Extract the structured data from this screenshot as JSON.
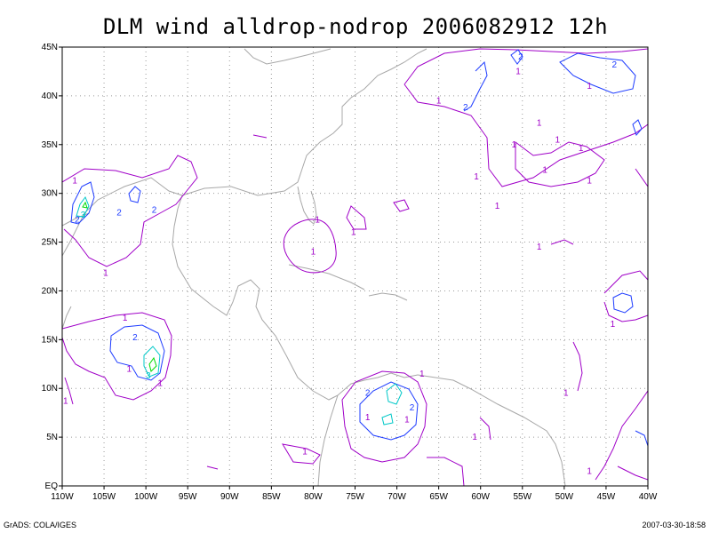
{
  "title": "DLM wind alldrop-nodrop 2006082912 12h",
  "footer": {
    "left": "GrADS: COLA/IGES",
    "right": "2007-03-30-18:58"
  },
  "axes": {
    "lon": {
      "min": -110,
      "max": -40,
      "ticks": [
        -110,
        -105,
        -100,
        -95,
        -90,
        -85,
        -80,
        -75,
        -70,
        -65,
        -60,
        -55,
        -50,
        -45,
        -40
      ],
      "labels": [
        "110W",
        "105W",
        "100W",
        "95W",
        "90W",
        "85W",
        "80W",
        "75W",
        "70W",
        "65W",
        "60W",
        "55W",
        "50W",
        "45W",
        "40W"
      ]
    },
    "lat": {
      "min": 0,
      "max": 45,
      "ticks": [
        0,
        5,
        10,
        15,
        20,
        25,
        30,
        35,
        40,
        45
      ],
      "labels": [
        "EQ",
        "5N",
        "10N",
        "15N",
        "20N",
        "25N",
        "30N",
        "35N",
        "40N",
        "45N"
      ]
    }
  },
  "colors": {
    "land": "#a8a8a8",
    "grid": "#9a9a9a",
    "level1": "#a000c8",
    "level2": "#1e3cff",
    "level3": "#00c8c8",
    "level4": "#00dc00"
  },
  "contour_labels": [
    {
      "text": "1",
      "lon": -108.5,
      "lat": 31.3,
      "level": 1
    },
    {
      "text": "2",
      "lon": -108.2,
      "lat": 27.3,
      "level": 2
    },
    {
      "text": "3",
      "lon": -107.5,
      "lat": 27.8,
      "level": 3
    },
    {
      "text": "2",
      "lon": -103.2,
      "lat": 28.0,
      "level": 2
    },
    {
      "text": "2",
      "lon": -99.0,
      "lat": 28.3,
      "level": 2
    },
    {
      "text": "1",
      "lon": -104.8,
      "lat": 21.8,
      "level": 1
    },
    {
      "text": "1",
      "lon": -102.5,
      "lat": 17.2,
      "level": 1
    },
    {
      "text": "2",
      "lon": -101.3,
      "lat": 15.2,
      "level": 2
    },
    {
      "text": "1",
      "lon": -102.0,
      "lat": 12.0,
      "level": 1
    },
    {
      "text": "3",
      "lon": -99.7,
      "lat": 11.3,
      "level": 3
    },
    {
      "text": "1",
      "lon": -98.3,
      "lat": 10.5,
      "level": 1
    },
    {
      "text": "1",
      "lon": -109.6,
      "lat": 8.7,
      "level": 1
    },
    {
      "text": "1",
      "lon": -79.5,
      "lat": 27.3,
      "level": 1
    },
    {
      "text": "1",
      "lon": -80.0,
      "lat": 24.0,
      "level": 1
    },
    {
      "text": "1",
      "lon": -75.2,
      "lat": 26.0,
      "level": 1
    },
    {
      "text": "1",
      "lon": -81.0,
      "lat": 3.5,
      "level": 1
    },
    {
      "text": "1",
      "lon": -67.0,
      "lat": 11.5,
      "level": 1
    },
    {
      "text": "2",
      "lon": -73.5,
      "lat": 9.5,
      "level": 2
    },
    {
      "text": "1",
      "lon": -73.5,
      "lat": 7.0,
      "level": 1
    },
    {
      "text": "2",
      "lon": -68.2,
      "lat": 8.0,
      "level": 2
    },
    {
      "text": "1",
      "lon": -68.8,
      "lat": 6.8,
      "level": 1
    },
    {
      "text": "1",
      "lon": -60.7,
      "lat": 5.0,
      "level": 1
    },
    {
      "text": "1",
      "lon": -65.0,
      "lat": 39.5,
      "level": 1
    },
    {
      "text": "2",
      "lon": -61.8,
      "lat": 38.8,
      "level": 2
    },
    {
      "text": "2",
      "lon": -55.2,
      "lat": 44.0,
      "level": 2
    },
    {
      "text": "1",
      "lon": -55.5,
      "lat": 42.5,
      "level": 1
    },
    {
      "text": "2",
      "lon": -44.0,
      "lat": 43.2,
      "level": 2
    },
    {
      "text": "1",
      "lon": -47.0,
      "lat": 41.0,
      "level": 1
    },
    {
      "text": "1",
      "lon": -53.0,
      "lat": 37.2,
      "level": 1
    },
    {
      "text": "1",
      "lon": -50.8,
      "lat": 35.5,
      "level": 1
    },
    {
      "text": "1",
      "lon": -48.0,
      "lat": 34.6,
      "level": 1
    },
    {
      "text": "1",
      "lon": -56.0,
      "lat": 35.0,
      "level": 1
    },
    {
      "text": "1",
      "lon": -60.5,
      "lat": 31.7,
      "level": 1
    },
    {
      "text": "1",
      "lon": -47.0,
      "lat": 31.3,
      "level": 1
    },
    {
      "text": "1",
      "lon": -52.3,
      "lat": 32.4,
      "level": 1
    },
    {
      "text": "1",
      "lon": -58.0,
      "lat": 28.7,
      "level": 1
    },
    {
      "text": "1",
      "lon": -53.0,
      "lat": 24.5,
      "level": 1
    },
    {
      "text": "1",
      "lon": -44.2,
      "lat": 16.6,
      "level": 1
    },
    {
      "text": "1",
      "lon": -49.8,
      "lat": 9.5,
      "level": 1
    },
    {
      "text": "1",
      "lon": -47.0,
      "lat": 1.5,
      "level": 1
    }
  ]
}
